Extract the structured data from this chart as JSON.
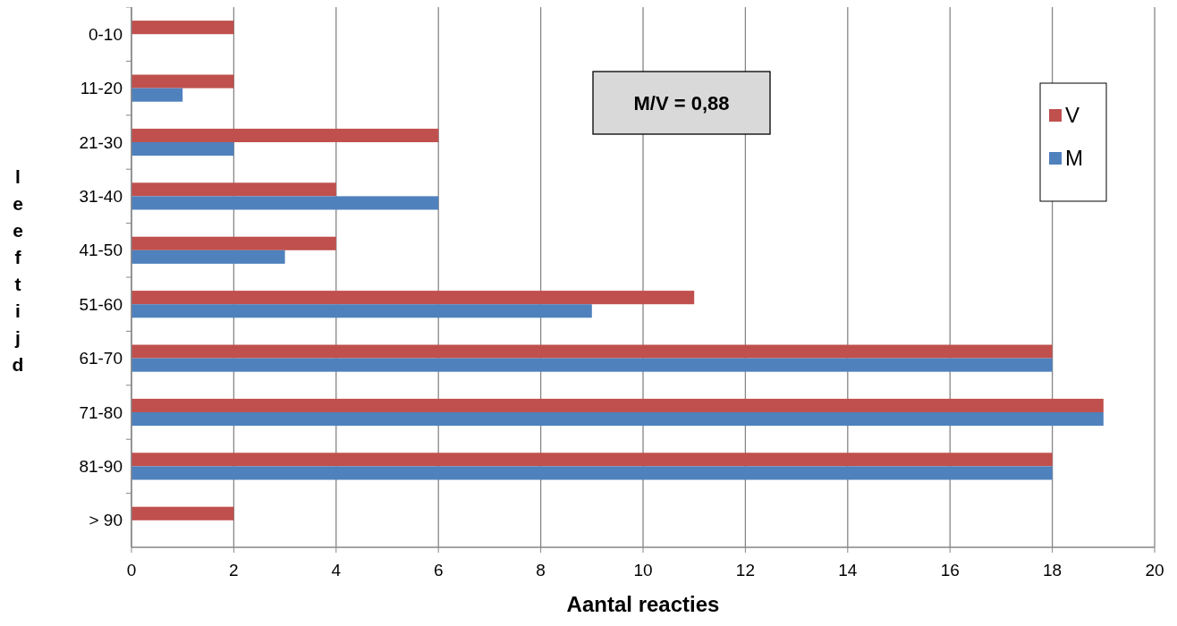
{
  "chart_data": {
    "type": "bar",
    "orientation": "horizontal",
    "xlabel": "Aantal reacties",
    "ylabel": "leeftijd",
    "categories": [
      "0-10",
      "11-20",
      "21-30",
      "31-40",
      "41-50",
      "51-60",
      "61-70",
      "71-80",
      "81-90",
      "> 90"
    ],
    "series": [
      {
        "name": "V",
        "color": "#c0504d",
        "values": [
          2,
          2,
          6,
          4,
          4,
          11,
          18,
          19,
          18,
          2
        ]
      },
      {
        "name": "M",
        "color": "#4f81bd",
        "values": [
          null,
          1,
          2,
          6,
          3,
          9,
          18,
          19,
          18,
          null
        ]
      }
    ],
    "xlim": [
      0,
      20
    ],
    "xticks": [
      0,
      2,
      4,
      6,
      8,
      10,
      12,
      14,
      16,
      18,
      20
    ],
    "grid": "x",
    "legend": "top right",
    "annotations": [
      "M/V = 0,88"
    ]
  }
}
